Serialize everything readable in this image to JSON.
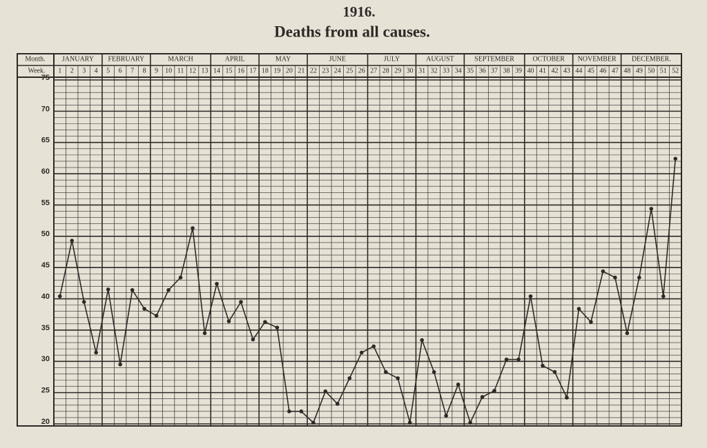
{
  "chart_data": {
    "type": "line",
    "title": "1916.",
    "subtitle": "Deaths from all causes.",
    "month_header_label": "Month.",
    "x_header_label": "Week.",
    "months": [
      {
        "label": "JANUARY",
        "first_week": 1,
        "last_week": 4
      },
      {
        "label": "FEBRUARY",
        "first_week": 5,
        "last_week": 8
      },
      {
        "label": "MARCH",
        "first_week": 9,
        "last_week": 13
      },
      {
        "label": "APRIL",
        "first_week": 14,
        "last_week": 17
      },
      {
        "label": "MAY",
        "first_week": 18,
        "last_week": 21
      },
      {
        "label": "JUNE",
        "first_week": 22,
        "last_week": 26
      },
      {
        "label": "JULY",
        "first_week": 27,
        "last_week": 30
      },
      {
        "label": "AUGUST",
        "first_week": 31,
        "last_week": 34
      },
      {
        "label": "SEPTEMBER",
        "first_week": 35,
        "last_week": 39
      },
      {
        "label": "OCTOBER",
        "first_week": 40,
        "last_week": 43
      },
      {
        "label": "NOVEMBER",
        "first_week": 44,
        "last_week": 47
      },
      {
        "label": "DECEMBER.",
        "first_week": 48,
        "last_week": 52
      }
    ],
    "x": [
      1,
      2,
      3,
      4,
      5,
      6,
      7,
      8,
      9,
      10,
      11,
      12,
      13,
      14,
      15,
      16,
      17,
      18,
      19,
      20,
      21,
      22,
      23,
      24,
      25,
      26,
      27,
      28,
      29,
      30,
      31,
      32,
      33,
      34,
      35,
      36,
      37,
      38,
      39,
      40,
      41,
      42,
      43,
      44,
      45,
      46,
      47,
      48,
      49,
      50,
      51,
      52
    ],
    "values": [
      40.4,
      49.3,
      39.5,
      31.4,
      41.5,
      29.5,
      41.4,
      38.4,
      37.3,
      41.4,
      43.4,
      51.3,
      34.5,
      42.4,
      36.4,
      39.5,
      33.5,
      36.3,
      35.4,
      22.0,
      22.0,
      20.2,
      25.2,
      23.2,
      27.3,
      31.4,
      32.4,
      28.3,
      27.3,
      20.2,
      33.4,
      28.3,
      21.3,
      26.3,
      20.2,
      24.3,
      25.3,
      30.3,
      30.3,
      40.4,
      29.3,
      28.3,
      24.2,
      38.4,
      36.3,
      44.4,
      43.4,
      34.5,
      43.4,
      54.4,
      40.4,
      62.4
    ],
    "color": "#2e2926",
    "ylim": [
      20,
      75
    ],
    "yticks": [
      20,
      25,
      30,
      35,
      40,
      45,
      50,
      55,
      60,
      65,
      70,
      75
    ],
    "grid": true
  }
}
